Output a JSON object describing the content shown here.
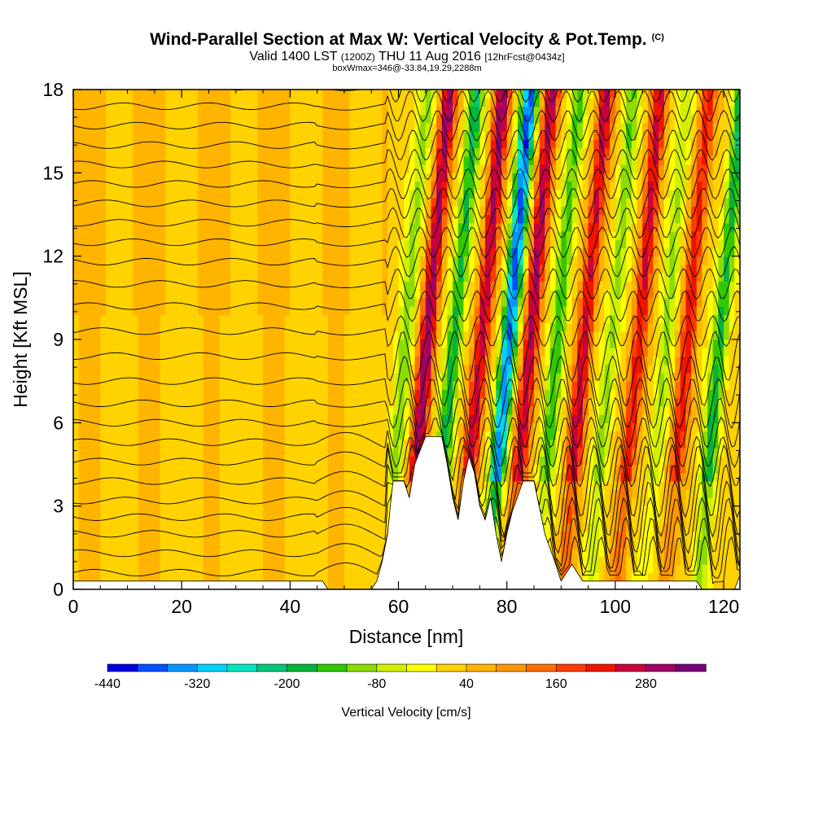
{
  "title": {
    "main": "Wind-Parallel Section at Max W: Vertical Velocity & Pot.Temp.",
    "copyright_mark": "(C)",
    "valid_prefix": "Valid 1400 LST",
    "valid_utc": "(1200Z)",
    "valid_date": "THU 11 Aug 2016",
    "forecast_info": "[12hrFcst@0434z]",
    "box_info": "boxWmax=346@-33.84,19.29,2288m"
  },
  "chart_data": {
    "type": "heatmap",
    "xlabel": "Distance [nm]",
    "ylabel": "Height [Kft MSL]",
    "xlim": [
      0,
      123
    ],
    "ylim": [
      0,
      18
    ],
    "x_ticks": [
      0,
      20,
      40,
      60,
      80,
      100,
      120
    ],
    "y_ticks": [
      0,
      3,
      6,
      9,
      12,
      15,
      18
    ],
    "colorbar": {
      "label": "Vertical Velocity [cm/s]",
      "tick_labels": [
        "-440",
        "-320",
        "-200",
        "-80",
        "40",
        "160",
        "280"
      ],
      "min": -440,
      "max": 340,
      "step": 40,
      "colors": [
        "#0000e0",
        "#0050ff",
        "#0096ff",
        "#00d2ff",
        "#00e6c0",
        "#00c878",
        "#00b43c",
        "#32c800",
        "#8cdc00",
        "#d2f000",
        "#ffff00",
        "#ffd200",
        "#ffb400",
        "#ff9600",
        "#ff6e00",
        "#ff3c00",
        "#f01400",
        "#c8003c",
        "#a00064",
        "#780078"
      ]
    },
    "series_description_values": {
      "w_peak_max": 346,
      "terrain_peaks_nm": [
        62,
        67,
        73,
        76,
        80,
        85
      ],
      "terrain_peak_height_kft": 5.5,
      "wave_axes_x_nm": [
        60,
        64,
        69,
        74,
        79,
        83,
        88,
        93,
        98,
        103,
        108,
        112,
        118
      ],
      "wave_axes_w": [
        -120,
        280,
        -200,
        260,
        -380,
        260,
        -160,
        240,
        -120,
        220,
        -100,
        200,
        -200
      ]
    },
    "grid": false,
    "legend": "colorbar-bottom"
  }
}
